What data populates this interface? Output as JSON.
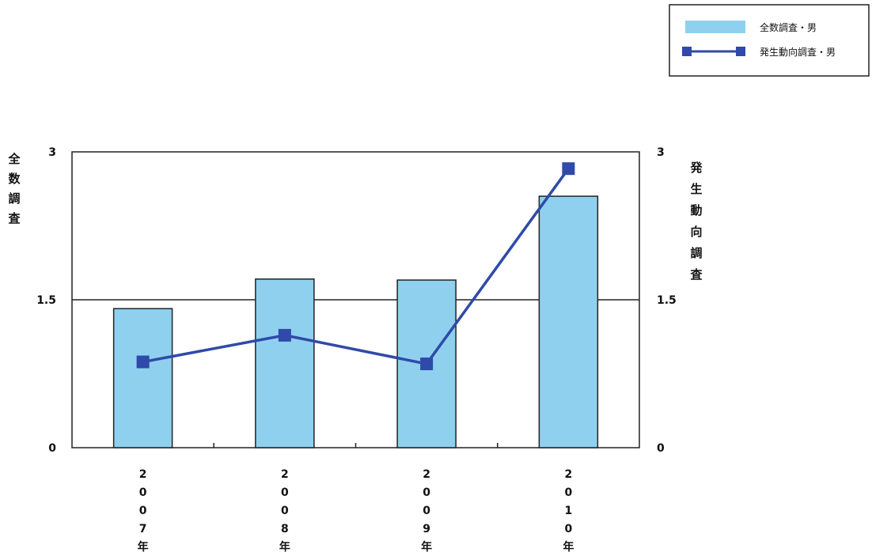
{
  "chart_data": {
    "type": "bar",
    "categories": [
      "2007年",
      "2008年",
      "2009年",
      "2010年"
    ],
    "series": [
      {
        "name": "全数調査・男",
        "kind": "bar",
        "axis": "left",
        "color": "#8fd0ef",
        "values": [
          1.41,
          1.71,
          1.7,
          2.55
        ]
      },
      {
        "name": "発生動向調査・男",
        "kind": "line",
        "axis": "right",
        "color": "#2f4aa8",
        "values": [
          0.87,
          1.14,
          0.85,
          2.83
        ]
      }
    ],
    "ylabel_left": "全数調査",
    "ylabel_right": "発生動向調査",
    "ylim_left": [
      0,
      3
    ],
    "ylim_right": [
      0,
      3
    ],
    "yticks": [
      "0",
      "1.5",
      "3"
    ],
    "grid": "horizontal line at 1.5",
    "legend_position": "top-right"
  }
}
